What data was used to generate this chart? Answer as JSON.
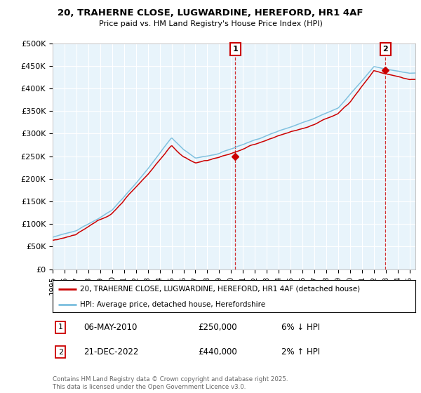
{
  "title": "20, TRAHERNE CLOSE, LUGWARDINE, HEREFORD, HR1 4AF",
  "subtitle": "Price paid vs. HM Land Registry's House Price Index (HPI)",
  "ylabel_ticks": [
    "£0",
    "£50K",
    "£100K",
    "£150K",
    "£200K",
    "£250K",
    "£300K",
    "£350K",
    "£400K",
    "£450K",
    "£500K"
  ],
  "ytick_values": [
    0,
    50000,
    100000,
    150000,
    200000,
    250000,
    300000,
    350000,
    400000,
    450000,
    500000
  ],
  "ylim": [
    0,
    500000
  ],
  "xlim_start": 1995,
  "xlim_end": 2025.5,
  "xtick_years": [
    1995,
    1996,
    1997,
    1998,
    1999,
    2000,
    2001,
    2002,
    2003,
    2004,
    2005,
    2006,
    2007,
    2008,
    2009,
    2010,
    2011,
    2012,
    2013,
    2014,
    2015,
    2016,
    2017,
    2018,
    2019,
    2020,
    2021,
    2022,
    2023,
    2024,
    2025
  ],
  "hpi_color": "#7bbfde",
  "price_color": "#cc0000",
  "marker1_x": 2010.35,
  "marker1_y": 250000,
  "marker1_label": "1",
  "marker2_x": 2022.97,
  "marker2_y": 440000,
  "marker2_label": "2",
  "marker_box_color": "#cc0000",
  "dashed_line_color": "#cc0000",
  "legend_label_red": "20, TRAHERNE CLOSE, LUGWARDINE, HEREFORD, HR1 4AF (detached house)",
  "legend_label_blue": "HPI: Average price, detached house, Herefordshire",
  "footnote": "Contains HM Land Registry data © Crown copyright and database right 2025.\nThis data is licensed under the Open Government Licence v3.0.",
  "bg_color": "#ffffff",
  "plot_bg_color": "#e8f4fb",
  "grid_color": "#ffffff"
}
